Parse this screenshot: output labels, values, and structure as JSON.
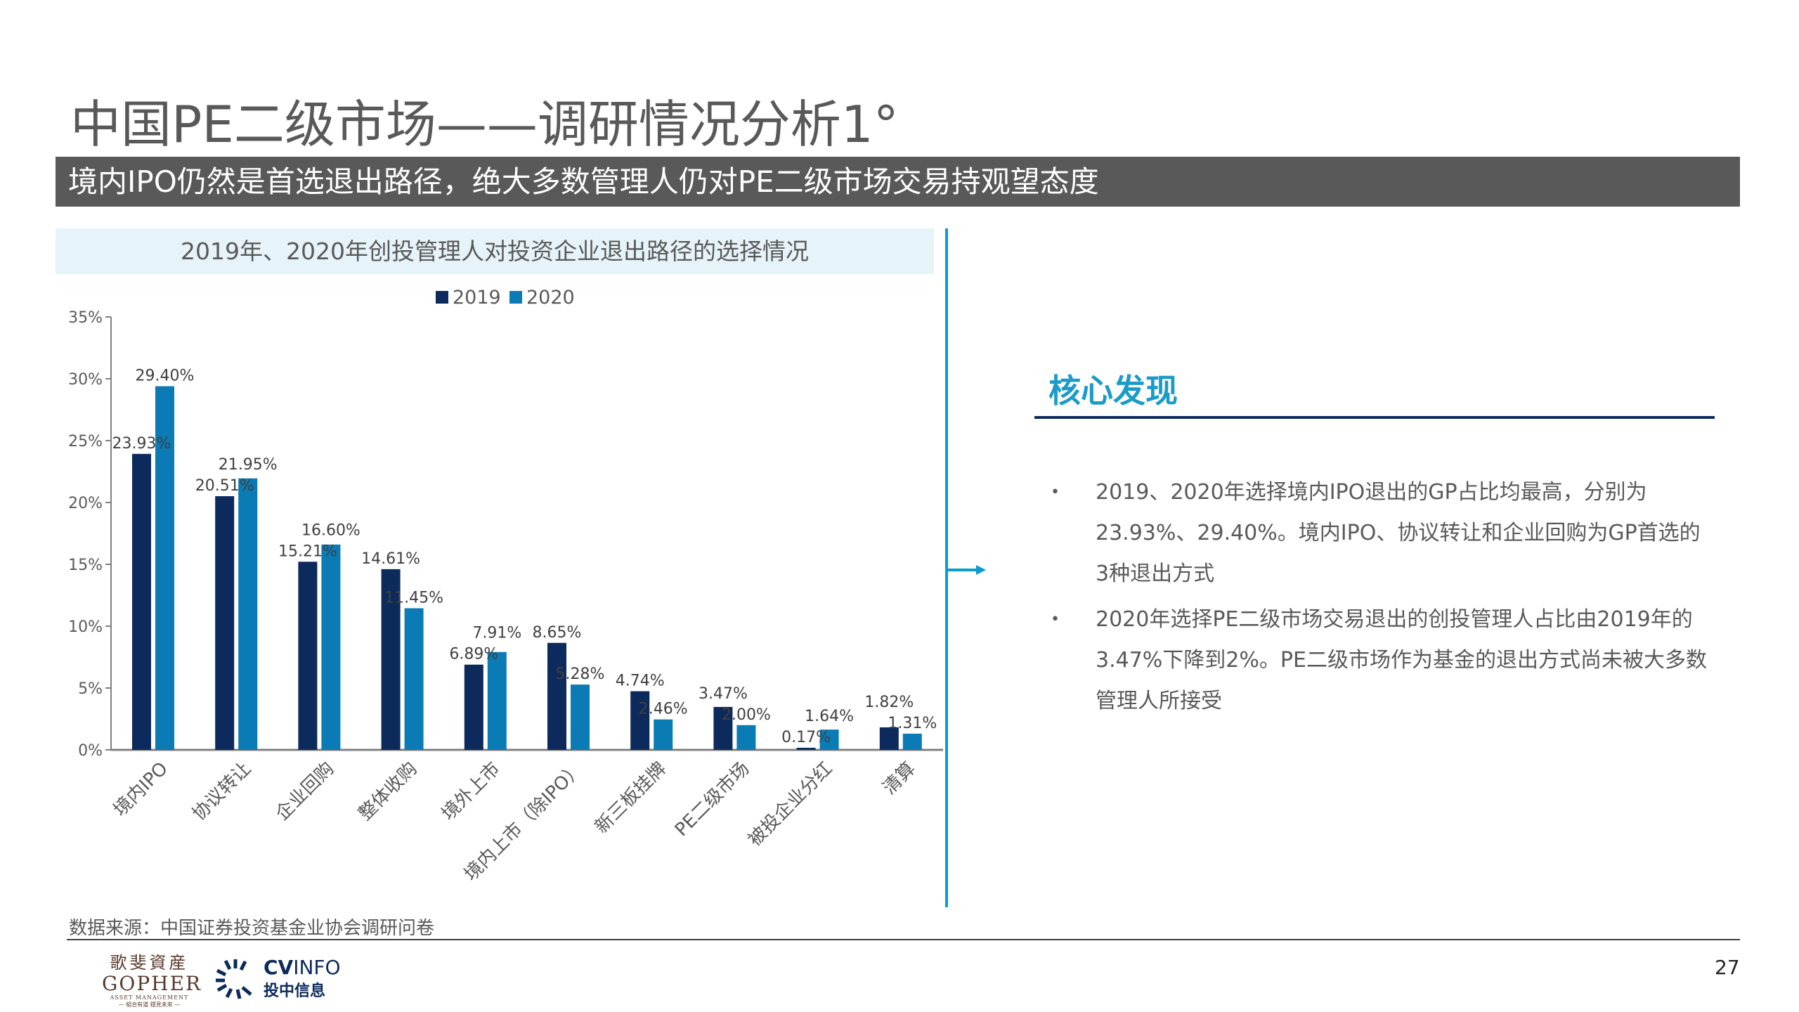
{
  "header": {
    "title": "中国PE二级市场——调研情况分析1°",
    "banner": "境内IPO仍然是首选退出路径，绝大多数管理人仍对PE二级市场交易持观望态度"
  },
  "chart_data": {
    "type": "bar",
    "title": "2019年、2020年创投管理人对投资企业退出路径的选择情况",
    "categories": [
      "境内IPO",
      "协议转让",
      "企业回购",
      "整体收购",
      "境外上市",
      "境内上市（除IPO）",
      "新三板挂牌",
      "PE二级市场",
      "被投企业分红",
      "清算"
    ],
    "series": [
      {
        "name": "2019",
        "color": "#0d2a5c",
        "values": [
          23.93,
          20.51,
          15.21,
          14.61,
          6.89,
          8.65,
          4.74,
          3.47,
          0.17,
          1.82
        ],
        "labels": [
          "23.93%",
          "20.51%",
          "15.21%",
          "14.61%",
          "6.89%",
          "8.65%",
          "4.74%",
          "3.47%",
          "0.17%",
          "1.82%"
        ]
      },
      {
        "name": "2020",
        "color": "#0a7bb5",
        "values": [
          29.4,
          21.95,
          16.6,
          11.45,
          7.91,
          5.28,
          2.46,
          2.0,
          1.64,
          1.31
        ],
        "labels": [
          "29.40%",
          "21.95%",
          "16.60%",
          "11.45%",
          "7.91%",
          "5.28%",
          "2.46%",
          "2.00%",
          "1.64%",
          "1.31%"
        ]
      }
    ],
    "yticks": [
      "0%",
      "5%",
      "10%",
      "15%",
      "20%",
      "25%",
      "30%",
      "35%"
    ],
    "ylim": [
      0,
      35
    ],
    "xlabel": "",
    "ylabel": "",
    "legend": "top-center",
    "grid": false
  },
  "findings": {
    "title": "核心发现",
    "bullets": [
      "2019、2020年选择境内IPO退出的GP占比均最高，分别为23.93%、29.40%。境内IPO、协议转让和企业回购为GP首选的3种退出方式",
      "2020年选择PE二级市场交易退出的创投管理人占比由2019年的3.47%下降到2%。PE二级市场作为基金的退出方式尚未被大多数管理人所接受"
    ],
    "bullet_mark": "•"
  },
  "footer": {
    "source": "数据来源：中国证券投资基金业协会调研问卷",
    "page_number": "27",
    "logos": {
      "gopher_cn": "歌斐資産",
      "gopher_en": "GOPHER",
      "gopher_sub": "ASSET MANAGEMENT",
      "gopher_slogan": "— 組合有道 穩見未來 —",
      "cv_en_bold": "CV",
      "cv_en_light": "INFO",
      "cv_cn": "投中信息"
    }
  }
}
